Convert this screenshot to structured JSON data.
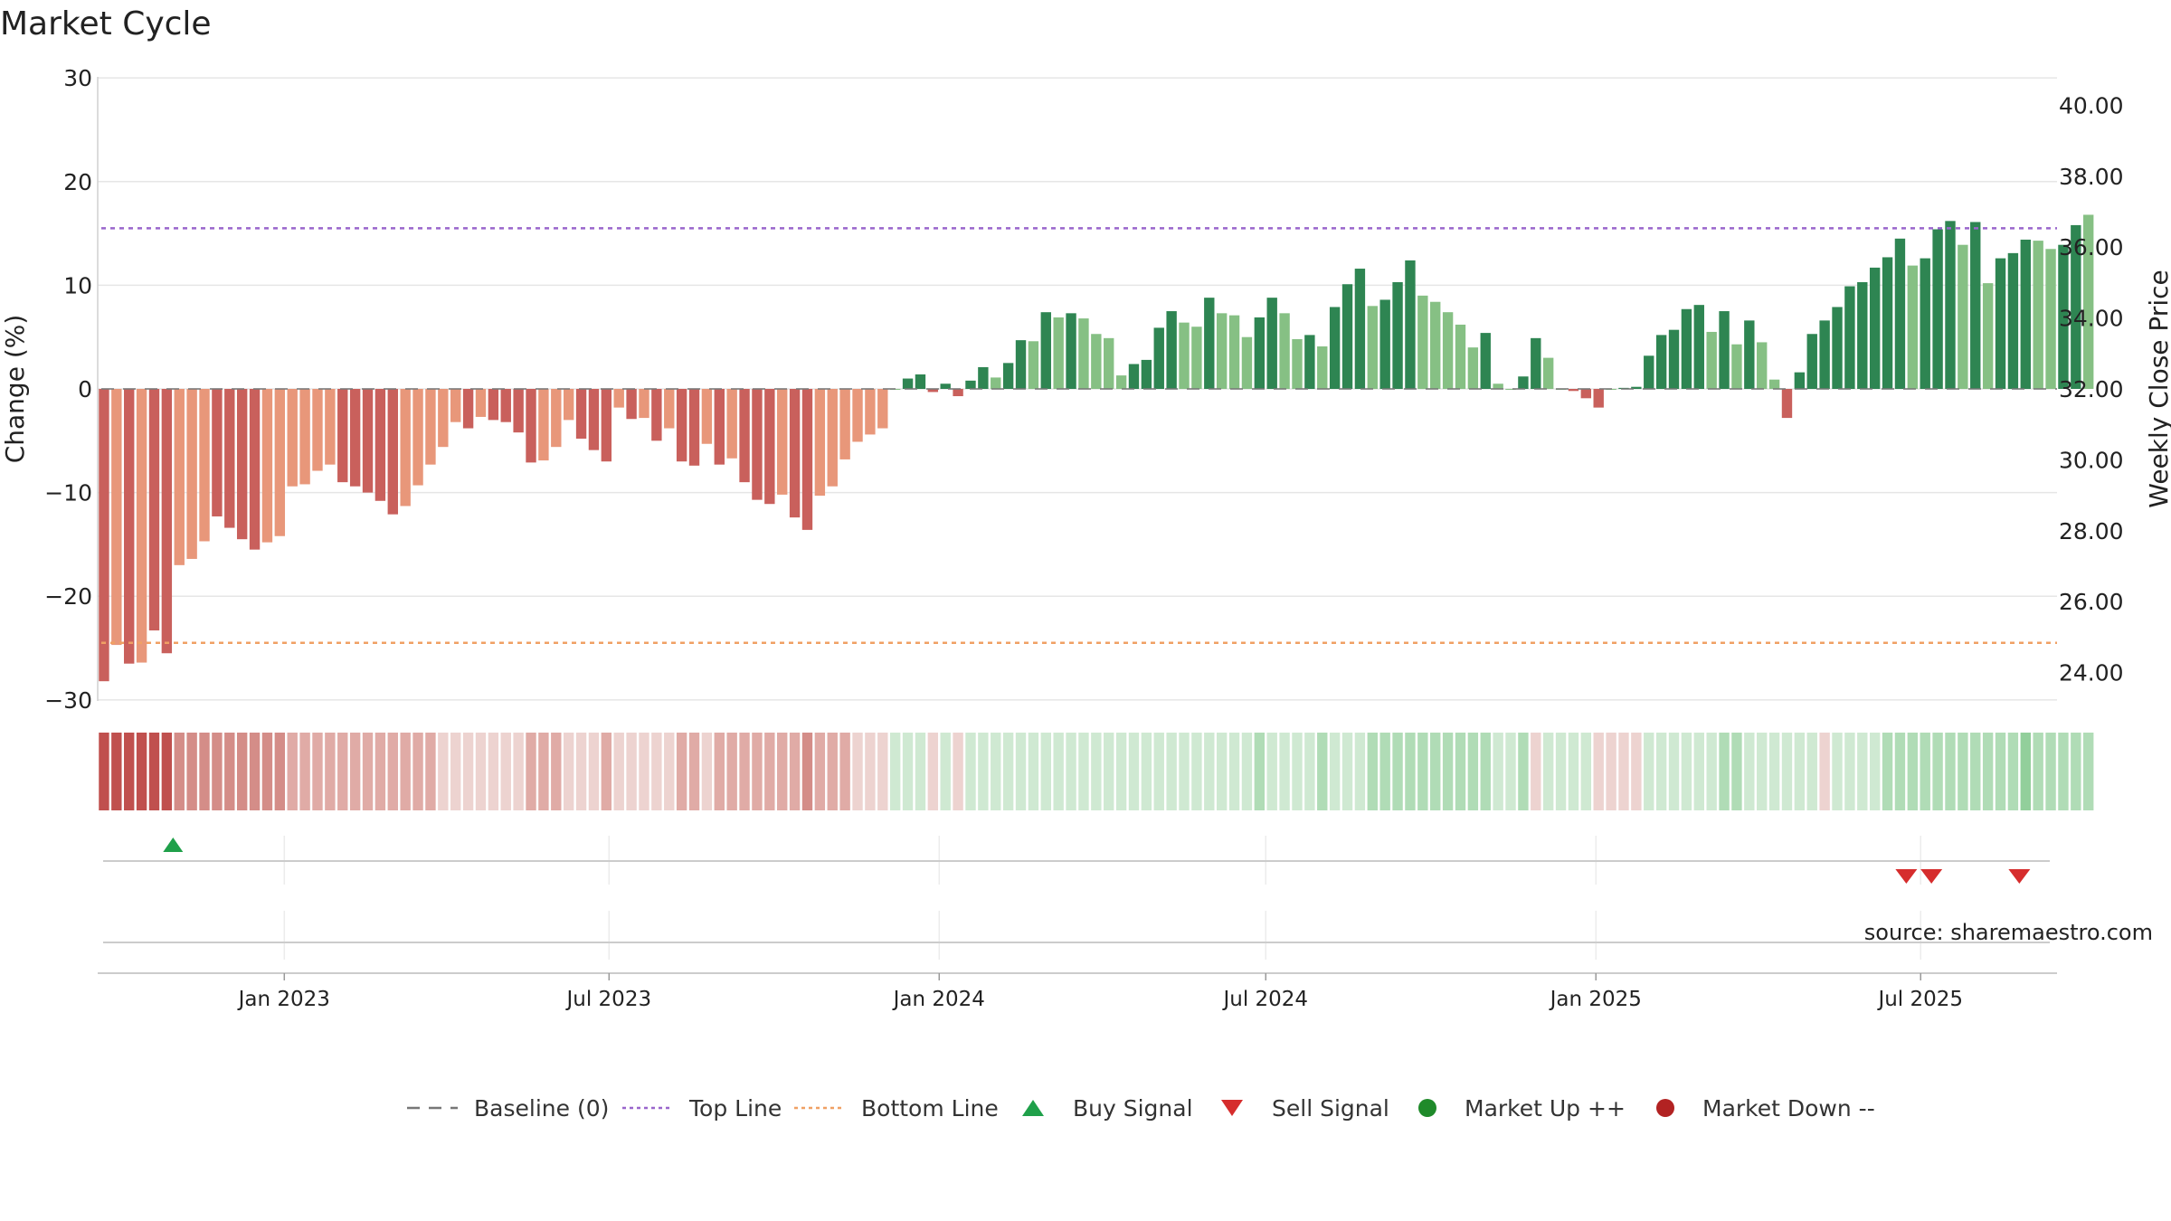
{
  "chart_data": {
    "type": "bar",
    "title": "Market Cycle",
    "ylabel": "Change (%)",
    "ylabel_right": "Weekly Close Price",
    "ylim": [
      -30,
      30
    ],
    "yticks": [
      30,
      20,
      10,
      0,
      -10,
      -20,
      -30
    ],
    "ytick_labels": [
      "30",
      "20",
      "10",
      "0",
      "−10",
      "−20",
      "−30"
    ],
    "ylim_right": [
      23.2,
      40.8
    ],
    "yticks_right": [
      "40.00",
      "38.00",
      "36.00",
      "34.00",
      "32.00",
      "30.00",
      "28.00",
      "26.00",
      "24.00"
    ],
    "x_start": "2022-09-19",
    "x_end": "2025-09-15",
    "xticks": [
      {
        "date": "2023-01-01",
        "label": "Jan 2023"
      },
      {
        "date": "2023-07-01",
        "label": "Jul 2023"
      },
      {
        "date": "2024-01-01",
        "label": "Jan 2024"
      },
      {
        "date": "2024-07-01",
        "label": "Jul 2024"
      },
      {
        "date": "2025-01-01",
        "label": "Jan 2025"
      },
      {
        "date": "2025-07-01",
        "label": "Jul 2025"
      }
    ],
    "first_week": "2022-09-19",
    "week_interval_days": 7,
    "top_line": 15.5,
    "bottom_line": -24.5,
    "baseline": 0,
    "series": [
      {
        "values": [
          -28.2,
          -24.7,
          -26.5,
          -26.4,
          -23.3,
          -25.5,
          -17.0,
          -16.4,
          -14.7,
          -12.3,
          -13.4,
          -14.5,
          -15.5,
          -14.8,
          -14.2,
          -9.4,
          -9.2,
          -7.9,
          -7.3,
          -9.0,
          -9.4,
          -10.0,
          -10.8,
          -12.1,
          -11.3,
          -9.3,
          -7.3,
          -5.6,
          -3.2,
          -3.8,
          -2.7,
          -3.0,
          -3.2,
          -4.2,
          -7.1,
          -6.9,
          -5.6,
          -3.0,
          -4.8,
          -5.9,
          -7.0,
          -1.8,
          -2.9,
          -2.8,
          -5.0,
          -3.8,
          -7.0,
          -7.4,
          -5.3,
          -7.3,
          -6.7,
          -9.0,
          -10.7,
          -11.1,
          -10.2,
          -12.4,
          -13.6,
          -10.3,
          -9.4,
          -6.8,
          -5.1,
          -4.4,
          -3.8,
          0.0,
          1.0,
          1.4,
          -0.3,
          0.5,
          -0.7,
          0.8,
          2.1,
          1.1,
          2.5,
          4.7,
          4.6,
          7.4,
          6.9,
          7.3,
          6.8,
          5.3,
          4.9,
          1.3,
          2.4,
          2.8,
          5.9,
          7.5,
          6.4,
          6.0,
          8.8,
          7.3,
          7.1,
          5.0,
          6.9,
          8.8,
          7.3,
          4.8,
          5.2,
          4.1,
          7.9,
          10.1,
          11.6,
          8.0,
          8.6,
          10.3,
          12.4,
          9.0,
          8.4,
          7.4,
          6.2,
          4.0,
          5.4,
          0.5,
          0.0,
          1.2,
          4.9,
          3.0,
          0.0,
          -0.2,
          -0.9,
          -1.8,
          0.0,
          0.1,
          0.2,
          3.2,
          5.2,
          5.7,
          7.7,
          8.1,
          5.5,
          7.5,
          4.3,
          6.6,
          4.5,
          0.9,
          -2.8,
          1.6,
          5.3,
          6.6,
          7.9,
          9.9,
          10.3,
          11.7,
          12.7,
          14.5,
          11.9,
          12.6,
          15.4,
          16.2,
          13.9,
          16.1,
          10.2,
          12.6,
          13.1,
          14.4,
          14.3,
          13.5,
          13.9,
          15.8,
          16.8
        ],
        "colors_rule": "dark/light alternate by momentum"
      }
    ],
    "bar_tone": [
      2,
      1,
      2,
      1,
      2,
      2,
      1,
      1,
      1,
      2,
      2,
      2,
      2,
      1,
      1,
      1,
      1,
      1,
      1,
      2,
      2,
      2,
      2,
      2,
      1,
      1,
      1,
      1,
      1,
      2,
      1,
      2,
      2,
      2,
      2,
      1,
      1,
      1,
      2,
      2,
      2,
      1,
      2,
      1,
      2,
      1,
      2,
      2,
      1,
      2,
      1,
      2,
      2,
      2,
      1,
      2,
      2,
      1,
      1,
      1,
      1,
      1,
      1,
      0,
      2,
      2,
      2,
      2,
      2,
      2,
      2,
      1,
      2,
      2,
      1,
      2,
      1,
      2,
      1,
      1,
      1,
      1,
      2,
      2,
      2,
      2,
      1,
      1,
      2,
      1,
      1,
      1,
      2,
      2,
      1,
      1,
      2,
      1,
      2,
      2,
      2,
      1,
      2,
      2,
      2,
      1,
      1,
      1,
      1,
      1,
      2,
      1,
      0,
      2,
      2,
      1,
      0,
      2,
      2,
      2,
      0,
      2,
      2,
      2,
      2,
      2,
      2,
      2,
      1,
      2,
      1,
      2,
      1,
      1,
      2,
      2,
      2,
      2,
      2,
      2,
      2,
      2,
      2,
      2,
      1,
      2,
      2,
      2,
      1,
      2,
      1,
      2,
      2,
      2,
      1,
      1,
      2,
      2
    ],
    "momentum_strip": [
      -4,
      -4,
      -4,
      -4,
      -4,
      -4,
      -3,
      -3,
      -3,
      -3,
      -3,
      -3,
      -3,
      -3,
      -3,
      -2,
      -2,
      -2,
      -2,
      -2,
      -2,
      -2,
      -2,
      -2,
      -2,
      -2,
      -2,
      -1,
      -1,
      -1,
      -1,
      -1,
      -1,
      -1,
      -2,
      -2,
      -2,
      -1,
      -1,
      -1,
      -2,
      -1,
      -1,
      -1,
      -1,
      -1,
      -2,
      -2,
      -1,
      -2,
      -2,
      -2,
      -2,
      -2,
      -2,
      -2,
      -3,
      -2,
      -2,
      -2,
      -1,
      -1,
      -1,
      1,
      1,
      1,
      -1,
      1,
      -1,
      1,
      1,
      1,
      1,
      1,
      1,
      1,
      1,
      1,
      1,
      1,
      1,
      1,
      1,
      1,
      1,
      1,
      1,
      1,
      1,
      1,
      1,
      1,
      2,
      1,
      1,
      1,
      1,
      2,
      1,
      1,
      1,
      2,
      2,
      2,
      2,
      2,
      2,
      2,
      2,
      2,
      2,
      1,
      1,
      2,
      -1,
      1,
      1,
      1,
      1,
      -1,
      -1,
      -1,
      -1,
      1,
      1,
      1,
      1,
      1,
      1,
      2,
      2,
      1,
      1,
      1,
      1,
      1,
      1,
      -1,
      1,
      1,
      1,
      1,
      2,
      2,
      2,
      2,
      2,
      2,
      2,
      2,
      2,
      2,
      2,
      3,
      2,
      2,
      2,
      2,
      2,
      2,
      2,
      2,
      2,
      2,
      2,
      2,
      2,
      2
    ],
    "buy_signals": [
      "2022-10-31"
    ],
    "sell_signals": [
      "2025-06-23",
      "2025-07-07",
      "2025-08-25"
    ],
    "source_text": "source: sharemaestro.com",
    "legend": [
      "Baseline (0)",
      "Top Line",
      "Bottom Line",
      "Buy Signal",
      "Sell Signal",
      "Market Up ++",
      "Market Down --"
    ],
    "legend_placement": "bottom-center",
    "colors": {
      "green_dark": "#2e8552",
      "green_light": "#86c084",
      "red_dark": "#c9605c",
      "red_light": "#e8977a",
      "top_line": "#9966cc",
      "bottom_line": "#f0a064",
      "baseline": "#777777",
      "buy": "#1fa04a",
      "sell": "#d62d2d",
      "market_up": "#1f8a2a",
      "market_down": "#b22222",
      "grid": "#e6e6e6",
      "axis_text": "#222222"
    }
  }
}
